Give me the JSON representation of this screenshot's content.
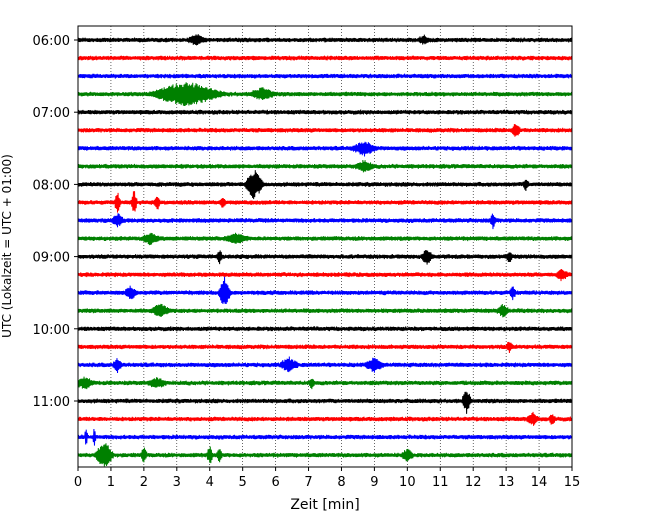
{
  "chart_data": {
    "type": "line",
    "title": "",
    "xlabel": "Zeit  [min]",
    "ylabel": "UTC (Lokalzeit = UTC + 01:00)",
    "xlim": [
      0,
      15
    ],
    "x_ticks": [
      "0",
      "1",
      "2",
      "3",
      "4",
      "5",
      "6",
      "7",
      "8",
      "9",
      "10",
      "11",
      "12",
      "13",
      "14",
      "15"
    ],
    "y_ticks": [
      {
        "label": "06:00",
        "row": 0
      },
      {
        "label": "07:00",
        "row": 4
      },
      {
        "label": "08:00",
        "row": 8
      },
      {
        "label": "09:00",
        "row": 12
      },
      {
        "label": "10:00",
        "row": 16
      },
      {
        "label": "11:00",
        "row": 20
      }
    ],
    "grid": "vertical dotted at each minute",
    "row_minutes": 15,
    "color_cycle": [
      "#000000",
      "#ff0000",
      "#0000ff",
      "#008000"
    ],
    "series": [
      {
        "start": "06:00",
        "color": "#000000",
        "events": [
          {
            "t": 3.6,
            "amp": 0.3,
            "dur": 0.3
          },
          {
            "t": 10.5,
            "amp": 0.25,
            "dur": 0.2
          }
        ]
      },
      {
        "start": "06:15",
        "color": "#ff0000",
        "events": []
      },
      {
        "start": "06:30",
        "color": "#0000ff",
        "events": []
      },
      {
        "start": "06:45",
        "color": "#008000",
        "events": [
          {
            "t": 3.3,
            "amp": 0.8,
            "dur": 1.2
          },
          {
            "t": 5.6,
            "amp": 0.4,
            "dur": 0.4
          }
        ]
      },
      {
        "start": "07:00",
        "color": "#000000",
        "events": []
      },
      {
        "start": "07:15",
        "color": "#ff0000",
        "events": [
          {
            "t": 13.3,
            "amp": 0.45,
            "dur": 0.15
          }
        ]
      },
      {
        "start": "07:30",
        "color": "#0000ff",
        "events": [
          {
            "t": 8.7,
            "amp": 0.45,
            "dur": 0.4
          }
        ]
      },
      {
        "start": "07:45",
        "color": "#008000",
        "events": [
          {
            "t": 8.7,
            "amp": 0.35,
            "dur": 0.3
          }
        ]
      },
      {
        "start": "08:00",
        "color": "#000000",
        "events": [
          {
            "t": 5.35,
            "amp": 1.0,
            "dur": 0.3
          },
          {
            "t": 13.6,
            "amp": 0.35,
            "dur": 0.1
          }
        ]
      },
      {
        "start": "08:15",
        "color": "#ff0000",
        "events": [
          {
            "t": 1.2,
            "amp": 0.7,
            "dur": 0.1
          },
          {
            "t": 1.7,
            "amp": 0.8,
            "dur": 0.1
          },
          {
            "t": 2.4,
            "amp": 0.5,
            "dur": 0.1
          },
          {
            "t": 4.4,
            "amp": 0.4,
            "dur": 0.1
          }
        ]
      },
      {
        "start": "08:30",
        "color": "#0000ff",
        "events": [
          {
            "t": 1.2,
            "amp": 0.4,
            "dur": 0.2
          },
          {
            "t": 12.6,
            "amp": 0.5,
            "dur": 0.1
          }
        ]
      },
      {
        "start": "08:45",
        "color": "#008000",
        "events": [
          {
            "t": 2.2,
            "amp": 0.35,
            "dur": 0.3
          },
          {
            "t": 4.8,
            "amp": 0.3,
            "dur": 0.4
          }
        ]
      },
      {
        "start": "09:00",
        "color": "#000000",
        "events": [
          {
            "t": 4.3,
            "amp": 0.45,
            "dur": 0.1
          },
          {
            "t": 10.6,
            "amp": 0.45,
            "dur": 0.2
          },
          {
            "t": 13.1,
            "amp": 0.35,
            "dur": 0.1
          }
        ]
      },
      {
        "start": "09:15",
        "color": "#ff0000",
        "events": [
          {
            "t": 14.7,
            "amp": 0.35,
            "dur": 0.2
          }
        ]
      },
      {
        "start": "09:30",
        "color": "#0000ff",
        "events": [
          {
            "t": 4.45,
            "amp": 1.0,
            "dur": 0.2
          },
          {
            "t": 1.6,
            "amp": 0.4,
            "dur": 0.2
          },
          {
            "t": 13.2,
            "amp": 0.4,
            "dur": 0.1
          }
        ]
      },
      {
        "start": "09:45",
        "color": "#008000",
        "events": [
          {
            "t": 2.5,
            "amp": 0.4,
            "dur": 0.3
          },
          {
            "t": 12.9,
            "amp": 0.35,
            "dur": 0.2
          }
        ]
      },
      {
        "start": "10:00",
        "color": "#000000",
        "events": []
      },
      {
        "start": "10:15",
        "color": "#ff0000",
        "events": [
          {
            "t": 13.1,
            "amp": 0.4,
            "dur": 0.1
          }
        ]
      },
      {
        "start": "10:30",
        "color": "#0000ff",
        "events": [
          {
            "t": 1.2,
            "amp": 0.45,
            "dur": 0.15
          },
          {
            "t": 6.4,
            "amp": 0.45,
            "dur": 0.3
          },
          {
            "t": 9.0,
            "amp": 0.45,
            "dur": 0.3
          }
        ]
      },
      {
        "start": "10:45",
        "color": "#008000",
        "events": [
          {
            "t": 0.2,
            "amp": 0.35,
            "dur": 0.3
          },
          {
            "t": 2.4,
            "amp": 0.3,
            "dur": 0.3
          },
          {
            "t": 7.1,
            "amp": 0.3,
            "dur": 0.1
          }
        ]
      },
      {
        "start": "11:00",
        "color": "#000000",
        "events": [
          {
            "t": 11.8,
            "amp": 0.85,
            "dur": 0.15
          }
        ]
      },
      {
        "start": "11:15",
        "color": "#ff0000",
        "events": [
          {
            "t": 13.8,
            "amp": 0.4,
            "dur": 0.2
          },
          {
            "t": 14.4,
            "amp": 0.35,
            "dur": 0.1
          }
        ]
      },
      {
        "start": "11:30",
        "color": "#0000ff",
        "events": [
          {
            "t": 0.25,
            "amp": 0.7,
            "dur": 0.05
          },
          {
            "t": 0.5,
            "amp": 0.7,
            "dur": 0.05
          }
        ]
      },
      {
        "start": "11:45",
        "color": "#008000",
        "events": [
          {
            "t": 0.8,
            "amp": 0.9,
            "dur": 0.3
          },
          {
            "t": 2.0,
            "amp": 0.5,
            "dur": 0.1
          },
          {
            "t": 4.0,
            "amp": 0.6,
            "dur": 0.1
          },
          {
            "t": 4.3,
            "amp": 0.4,
            "dur": 0.1
          },
          {
            "t": 10.0,
            "amp": 0.35,
            "dur": 0.2
          }
        ]
      }
    ]
  }
}
